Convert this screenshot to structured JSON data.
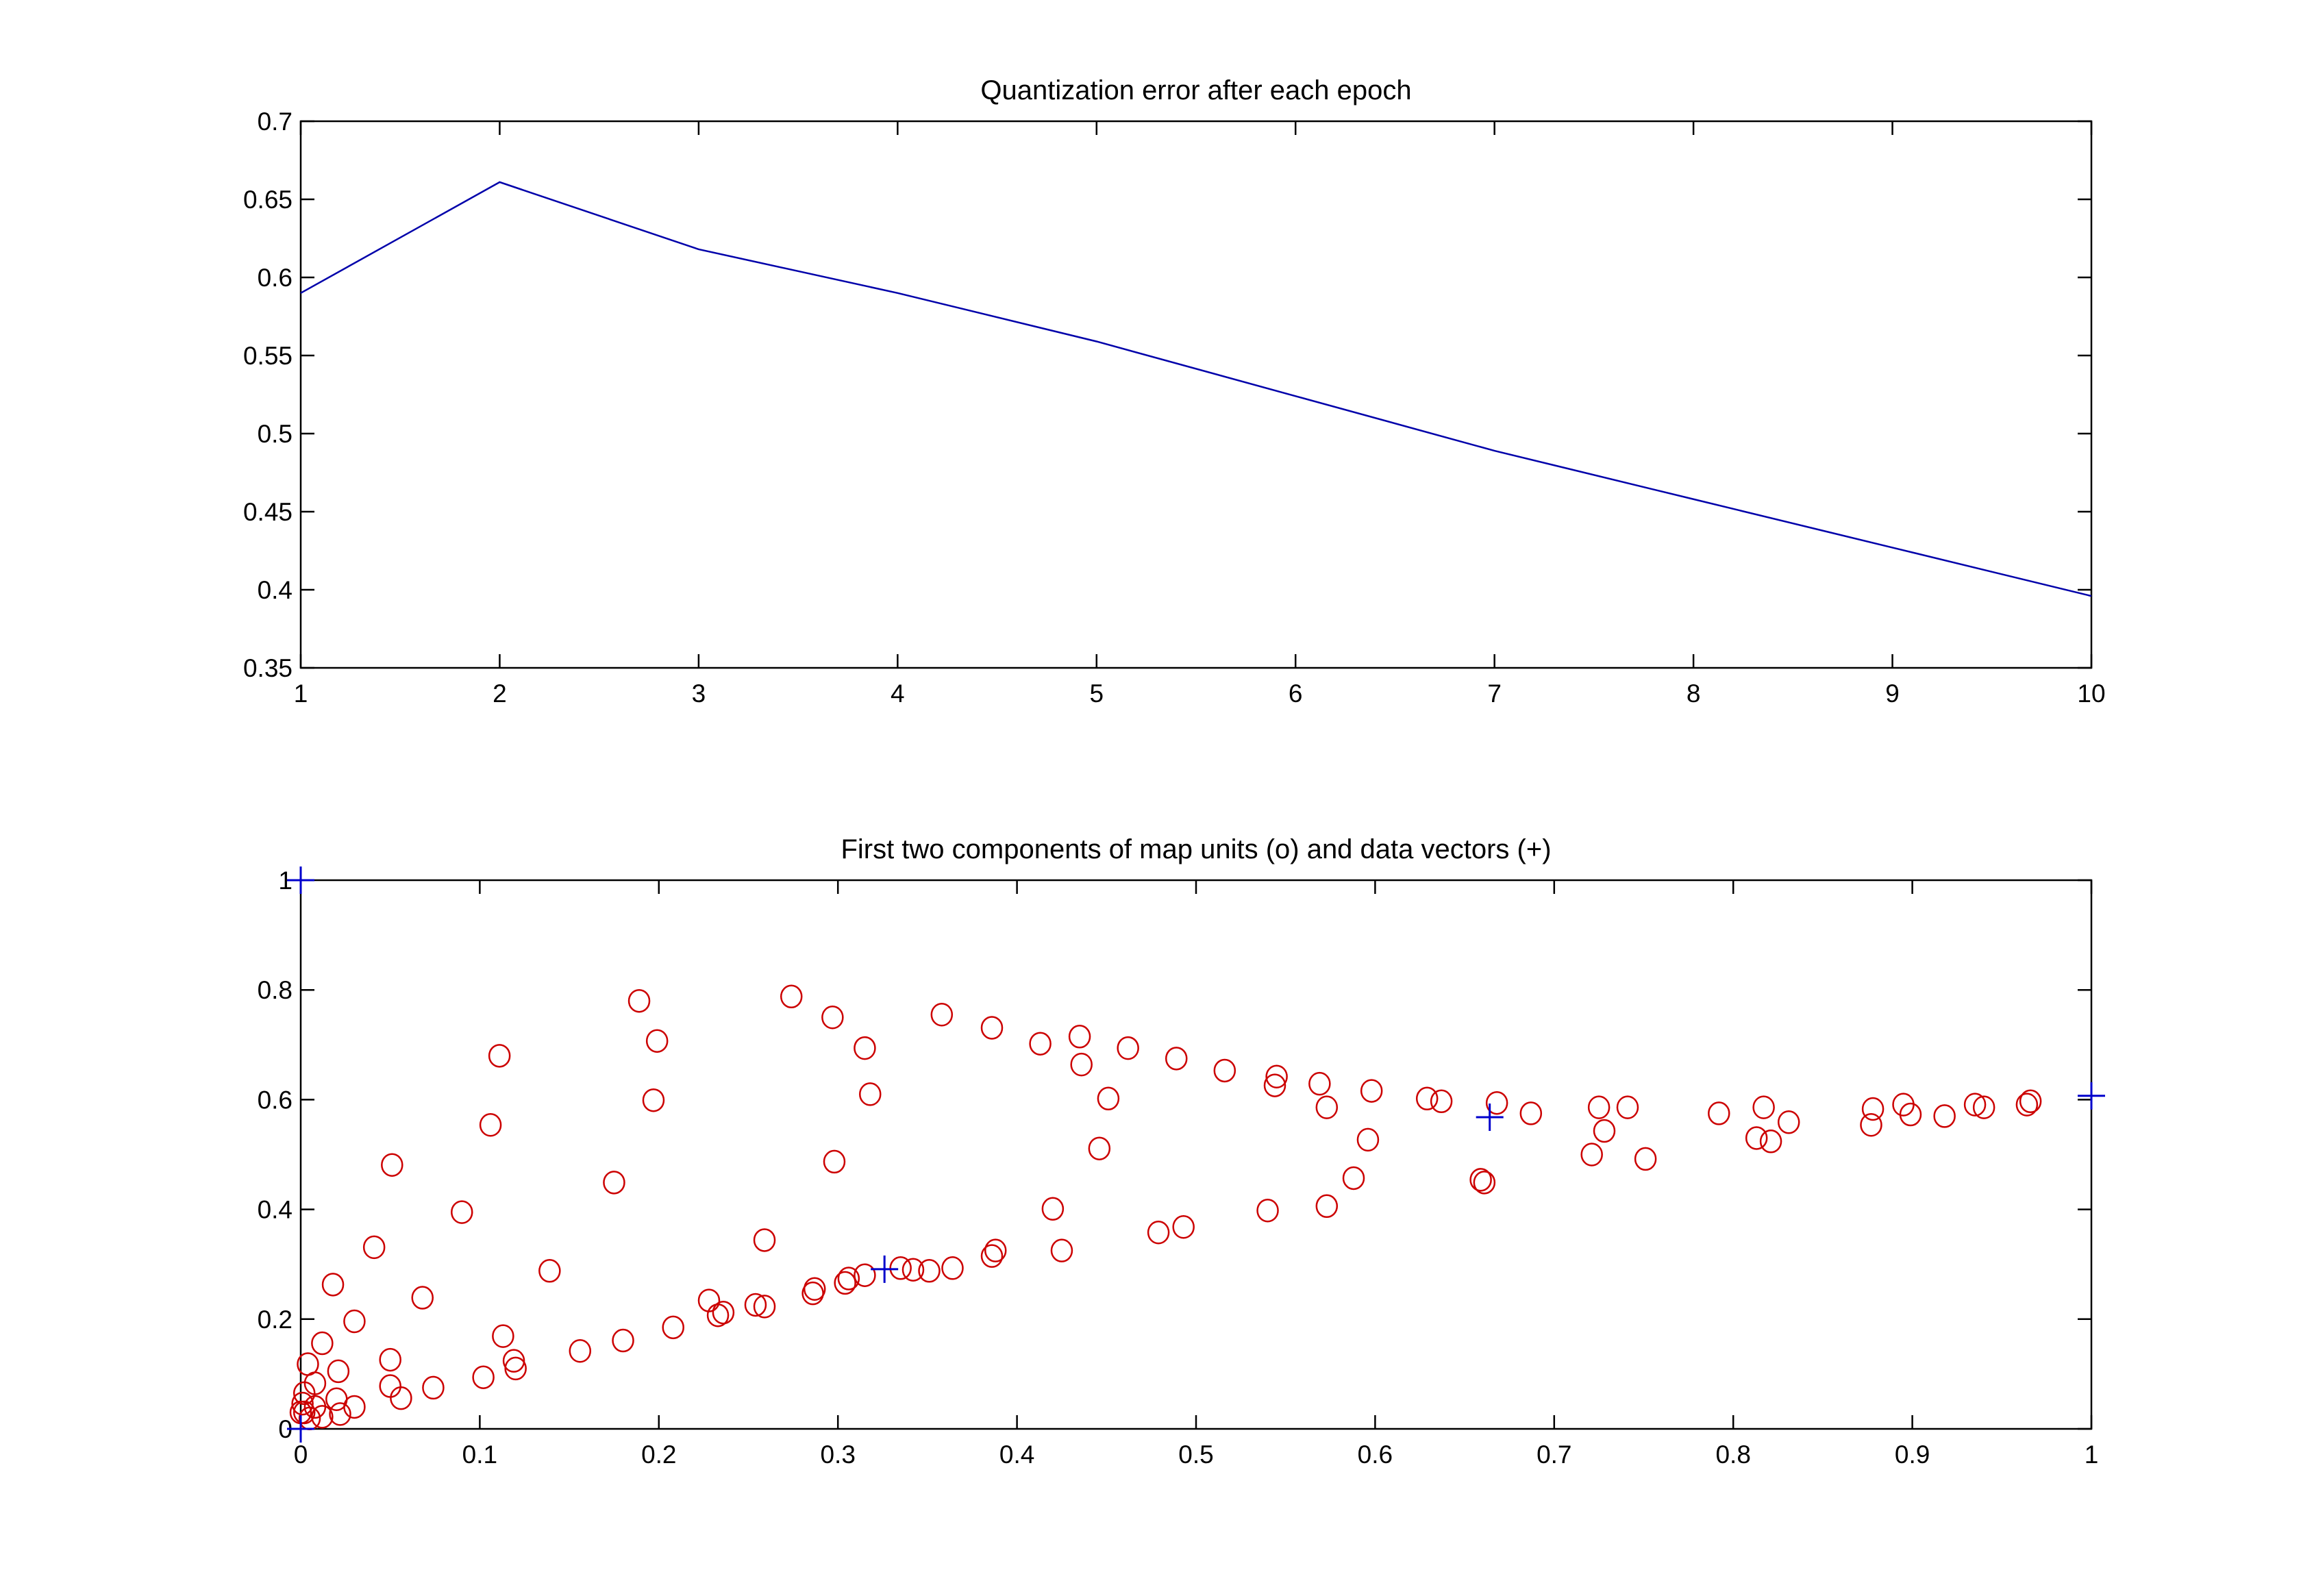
{
  "chart_data": [
    {
      "type": "line",
      "title": "Quantization error after each epoch",
      "xlabel": "",
      "ylabel": "",
      "xlim": [
        1,
        10
      ],
      "ylim": [
        0.35,
        0.7
      ],
      "xticks": [
        "1",
        "2",
        "3",
        "4",
        "5",
        "6",
        "7",
        "8",
        "9",
        "10"
      ],
      "yticks": [
        "0.35",
        "0.4",
        "0.45",
        "0.5",
        "0.55",
        "0.6",
        "0.65",
        "0.7"
      ],
      "grid": false,
      "series": [
        {
          "name": "quantization error",
          "color": "#0000aa",
          "x": [
            1,
            2,
            3,
            4,
            5,
            6,
            7,
            8,
            9,
            10
          ],
          "y": [
            0.59,
            0.661,
            0.618,
            0.59,
            0.559,
            0.524,
            0.489,
            0.458,
            0.427,
            0.396
          ]
        }
      ]
    },
    {
      "type": "scatter",
      "title": "First two components of map units (o) and data vectors (+)",
      "xlabel": "",
      "ylabel": "",
      "xlim": [
        0,
        1
      ],
      "ylim": [
        0,
        1
      ],
      "xticks": [
        "0",
        "0.1",
        "0.2",
        "0.3",
        "0.4",
        "0.5",
        "0.6",
        "0.7",
        "0.8",
        "0.9",
        "1"
      ],
      "yticks": [
        "0",
        "0.2",
        "0.4",
        "0.6",
        "0.8",
        "1"
      ],
      "grid": false,
      "series": [
        {
          "name": "map units (o)",
          "marker": "o",
          "color": "#cc0000",
          "points": [
            [
              0.189,
              0.78
            ],
            [
              0.199,
              0.707
            ],
            [
              0.197,
              0.599
            ],
            [
              0.274,
              0.788
            ],
            [
              0.297,
              0.75
            ],
            [
              0.315,
              0.694
            ],
            [
              0.318,
              0.61
            ],
            [
              0.358,
              0.755
            ],
            [
              0.386,
              0.731
            ],
            [
              0.413,
              0.702
            ],
            [
              0.435,
              0.715
            ],
            [
              0.436,
              0.664
            ],
            [
              0.462,
              0.694
            ],
            [
              0.451,
              0.602
            ],
            [
              0.489,
              0.675
            ],
            [
              0.516,
              0.653
            ],
            [
              0.545,
              0.642
            ],
            [
              0.544,
              0.626
            ],
            [
              0.569,
              0.629
            ],
            [
              0.573,
              0.586
            ],
            [
              0.598,
              0.616
            ],
            [
              0.596,
              0.527
            ],
            [
              0.629,
              0.602
            ],
            [
              0.637,
              0.597
            ],
            [
              0.668,
              0.594
            ],
            [
              0.687,
              0.575
            ],
            [
              0.725,
              0.586
            ],
            [
              0.728,
              0.543
            ],
            [
              0.741,
              0.586
            ],
            [
              0.721,
              0.5
            ],
            [
              0.751,
              0.492
            ],
            [
              0.792,
              0.575
            ],
            [
              0.817,
              0.586
            ],
            [
              0.813,
              0.53
            ],
            [
              0.821,
              0.524
            ],
            [
              0.831,
              0.559
            ],
            [
              0.878,
              0.583
            ],
            [
              0.877,
              0.554
            ],
            [
              0.895,
              0.591
            ],
            [
              0.899,
              0.573
            ],
            [
              0.918,
              0.57
            ],
            [
              0.935,
              0.591
            ],
            [
              0.94,
              0.586
            ],
            [
              0.964,
              0.591
            ],
            [
              0.966,
              0.597
            ],
            [
              0.659,
              0.454
            ],
            [
              0.661,
              0.449
            ],
            [
              0.588,
              0.457
            ],
            [
              0.573,
              0.406
            ],
            [
              0.54,
              0.398
            ],
            [
              0.493,
              0.368
            ],
            [
              0.479,
              0.358
            ],
            [
              0.446,
              0.511
            ],
            [
              0.425,
              0.325
            ],
            [
              0.42,
              0.401
            ],
            [
              0.388,
              0.325
            ],
            [
              0.386,
              0.315
            ],
            [
              0.364,
              0.293
            ],
            [
              0.351,
              0.288
            ],
            [
              0.342,
              0.29
            ],
            [
              0.335,
              0.293
            ],
            [
              0.315,
              0.28
            ],
            [
              0.306,
              0.274
            ],
            [
              0.304,
              0.266
            ],
            [
              0.287,
              0.255
            ],
            [
              0.286,
              0.247
            ],
            [
              0.259,
              0.344
            ],
            [
              0.259,
              0.223
            ],
            [
              0.254,
              0.226
            ],
            [
              0.236,
              0.212
            ],
            [
              0.233,
              0.207
            ],
            [
              0.228,
              0.234
            ],
            [
              0.208,
              0.185
            ],
            [
              0.18,
              0.161
            ],
            [
              0.156,
              0.142
            ],
            [
              0.298,
              0.487
            ],
            [
              0.175,
              0.449
            ],
            [
              0.139,
              0.288
            ],
            [
              0.111,
              0.68
            ],
            [
              0.106,
              0.554
            ],
            [
              0.09,
              0.395
            ],
            [
              0.068,
              0.239
            ],
            [
              0.051,
              0.481
            ],
            [
              0.041,
              0.331
            ],
            [
              0.03,
              0.196
            ],
            [
              0.018,
              0.263
            ],
            [
              0.012,
              0.156
            ],
            [
              0.004,
              0.118
            ],
            [
              0.008,
              0.083
            ],
            [
              0.021,
              0.105
            ],
            [
              0.05,
              0.126
            ],
            [
              0.113,
              0.169
            ],
            [
              0.119,
              0.124
            ],
            [
              0.12,
              0.11
            ],
            [
              0.102,
              0.094
            ],
            [
              0.074,
              0.075
            ],
            [
              0.05,
              0.078
            ],
            [
              0.056,
              0.056
            ],
            [
              0.02,
              0.054
            ],
            [
              0.03,
              0.04
            ],
            [
              0.022,
              0.027
            ],
            [
              0.008,
              0.04
            ],
            [
              0.012,
              0.022
            ],
            [
              0.002,
              0.065
            ],
            [
              0.001,
              0.046
            ],
            [
              0.002,
              0.03
            ],
            [
              0.005,
              0.019
            ],
            [
              0.0,
              0.03
            ]
          ]
        },
        {
          "name": "data vectors (+)",
          "marker": "+",
          "color": "#0000cc",
          "points": [
            [
              0,
              0
            ],
            [
              0,
              1
            ],
            [
              0.326,
              0.291
            ],
            [
              0.664,
              0.568
            ],
            [
              1,
              0.607
            ]
          ]
        }
      ]
    }
  ]
}
